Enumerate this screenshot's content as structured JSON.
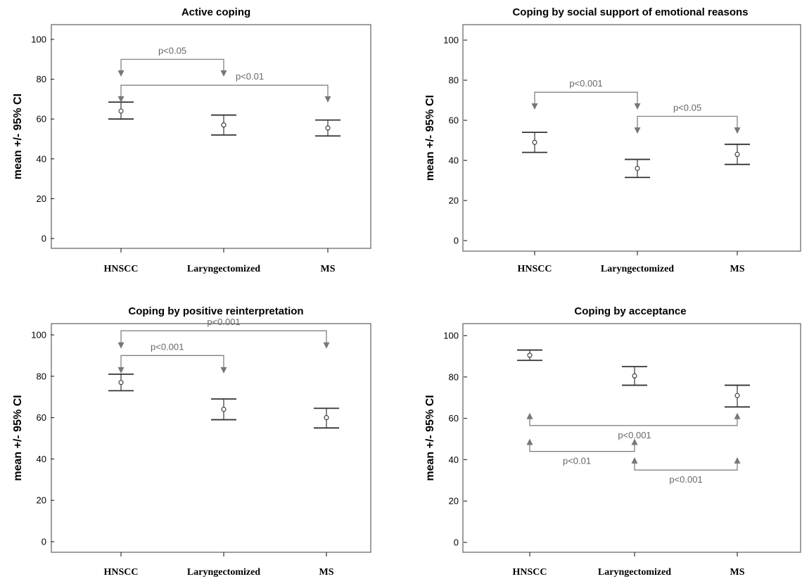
{
  "chart_data": [
    {
      "type": "errorbar",
      "title": "Active coping",
      "ylabel": "mean +/- 95% CI",
      "xlabel": "",
      "categories": [
        "HNSCC",
        "Laryngectomized",
        "MS"
      ],
      "ylim": [
        -5,
        105
      ],
      "yticks": [
        0,
        20,
        40,
        60,
        80,
        100
      ],
      "mean": [
        64,
        57,
        55.5
      ],
      "lower": [
        60,
        52,
        51.5
      ],
      "upper": [
        68.5,
        62,
        59.5
      ],
      "comparisons": [
        {
          "from": 0,
          "to": 1,
          "label": "p<0.05",
          "y": 90,
          "arrow_y": 82,
          "dir": "down",
          "label_x": 0.5
        },
        {
          "from": 0,
          "to": 2,
          "label": "p<0.01",
          "y": 77,
          "arrow_y": 69,
          "dir": "down",
          "label_x": 1.25
        }
      ]
    },
    {
      "type": "errorbar",
      "title": "Coping by social support of emotional reasons",
      "ylabel": "mean +/- 95% CI",
      "xlabel": "",
      "categories": [
        "HNSCC",
        "Laryngectomized",
        "MS"
      ],
      "ylim": [
        -5,
        105
      ],
      "yticks": [
        0,
        20,
        40,
        60,
        80,
        100
      ],
      "mean": [
        49,
        36,
        43
      ],
      "lower": [
        44,
        31.5,
        38
      ],
      "upper": [
        54,
        40.5,
        48
      ],
      "comparisons": [
        {
          "from": 0,
          "to": 1,
          "label": "p<0.001",
          "y": 74,
          "arrow_y": 66,
          "dir": "down",
          "label_x": 0.5
        },
        {
          "from": 1,
          "to": 2,
          "label": "p<0.05",
          "y": 62,
          "arrow_y": 54,
          "dir": "down",
          "label_x": 1.5
        }
      ]
    },
    {
      "type": "errorbar",
      "title": "Coping by positive reinterpretation",
      "ylabel": "mean +/- 95% CI",
      "xlabel": "",
      "categories": [
        "HNSCC",
        "Laryngectomized",
        "MS"
      ],
      "ylim": [
        -5,
        105
      ],
      "yticks": [
        0,
        20,
        40,
        60,
        80,
        100
      ],
      "mean": [
        77,
        64,
        60
      ],
      "lower": [
        73,
        59,
        55
      ],
      "upper": [
        81,
        69,
        64.5
      ],
      "comparisons": [
        {
          "from": 0,
          "to": 2,
          "label": "p<0.001",
          "y": 102,
          "arrow_y": 94,
          "dir": "down",
          "label_x": 1.0
        },
        {
          "from": 0,
          "to": 1,
          "label": "p<0.001",
          "y": 90,
          "arrow_y": 82,
          "dir": "down",
          "label_x": 0.45
        }
      ]
    },
    {
      "type": "errorbar",
      "title": "Coping by acceptance",
      "ylabel": "mean +/- 95% CI",
      "xlabel": "",
      "categories": [
        "HNSCC",
        "Laryngectomized",
        "MS"
      ],
      "ylim": [
        -5,
        105
      ],
      "yticks": [
        0,
        20,
        40,
        60,
        80,
        100
      ],
      "mean": [
        90.5,
        80.5,
        71
      ],
      "lower": [
        88,
        76,
        65.5
      ],
      "upper": [
        93,
        85,
        76
      ],
      "comparisons": [
        {
          "from": 0,
          "to": 2,
          "label": "p<0.001",
          "y": 56.5,
          "arrow_y": 62,
          "dir": "up",
          "label_x": 1.0
        },
        {
          "from": 0,
          "to": 1,
          "label": "p<0.01",
          "y": 44,
          "arrow_y": 49.5,
          "dir": "up",
          "label_x": 0.45
        },
        {
          "from": 1,
          "to": 2,
          "label": "p<0.001",
          "y": 35,
          "arrow_y": 40.5,
          "dir": "up",
          "label_x": 1.5
        }
      ]
    }
  ]
}
